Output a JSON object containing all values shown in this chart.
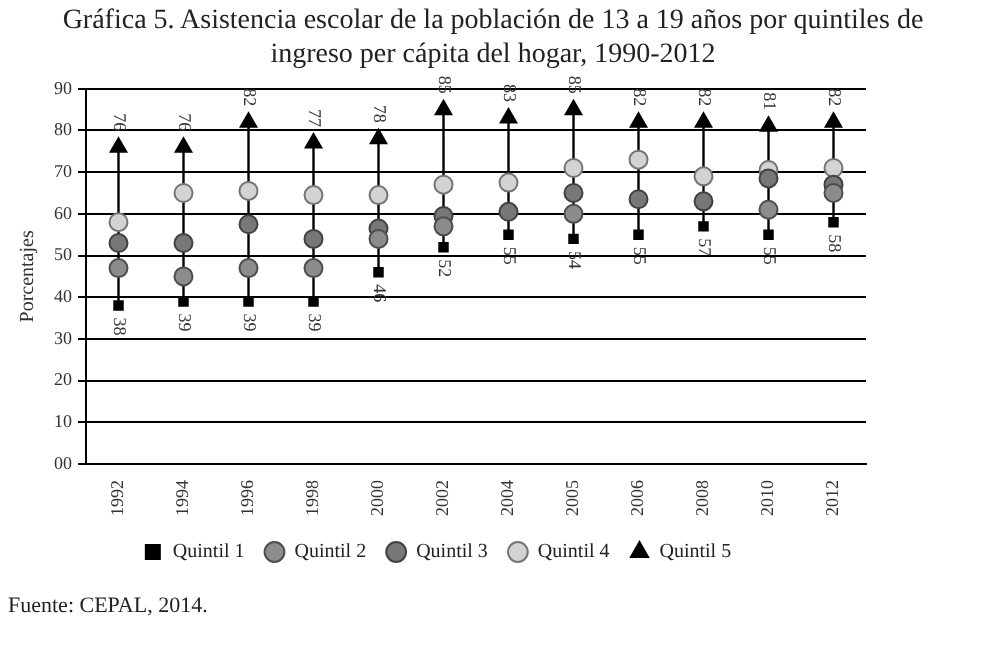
{
  "chart_data": {
    "type": "scatter",
    "title": "Gráfica 5. Asistencia escolar de la población de 13 a 19 años por quintiles de ingreso per cápita del hogar, 1990-2012",
    "ylabel": "Porcentajes",
    "categories": [
      "1992",
      "1994",
      "1996",
      "1998",
      "2000",
      "2002",
      "2004",
      "2005",
      "2006",
      "2008",
      "2010",
      "2012"
    ],
    "series": [
      {
        "name": "Quintil 1",
        "color": "#000000",
        "marker": "square",
        "values": [
          38,
          39,
          39,
          39,
          46,
          52,
          55,
          54,
          55,
          57,
          55,
          58
        ],
        "value_labels": [
          "38",
          "39",
          "39",
          "39",
          "46",
          "52",
          "55",
          "54",
          "55",
          "57",
          "55",
          "58"
        ]
      },
      {
        "name": "Quintil 2",
        "color": "#8c8c8c",
        "marker": "circle",
        "values": [
          47,
          45,
          47,
          47,
          54,
          57,
          null,
          60,
          null,
          null,
          61,
          65
        ]
      },
      {
        "name": "Quintil 3",
        "color": "#777777",
        "marker": "circle",
        "values": [
          53,
          53,
          57.5,
          54,
          56.5,
          59.5,
          60.5,
          65,
          63.5,
          63,
          68.5,
          67
        ]
      },
      {
        "name": "Quintil 4",
        "color": "#d3d3d3",
        "marker": "circle",
        "values": [
          58,
          65,
          65.5,
          64.5,
          64.5,
          67,
          67.5,
          71,
          73,
          69,
          70.5,
          71
        ]
      },
      {
        "name": "Quintil 5",
        "color": "#000000",
        "marker": "triangle",
        "values": [
          76,
          76,
          82,
          77,
          78,
          85,
          83,
          85,
          82,
          82,
          81,
          82
        ],
        "value_labels": [
          "76",
          "76",
          "82",
          "77",
          "78",
          "85",
          "83",
          "85",
          "82",
          "82",
          "81",
          "82"
        ]
      }
    ],
    "ylim": [
      0,
      90
    ],
    "yticks": [
      {
        "value": 0,
        "label": "00"
      },
      10,
      20,
      30,
      40,
      50,
      60,
      70,
      80,
      90
    ],
    "grid": "y",
    "legend": "bottom",
    "annotations": [
      "Fuente: CEPAL, 2014."
    ]
  }
}
